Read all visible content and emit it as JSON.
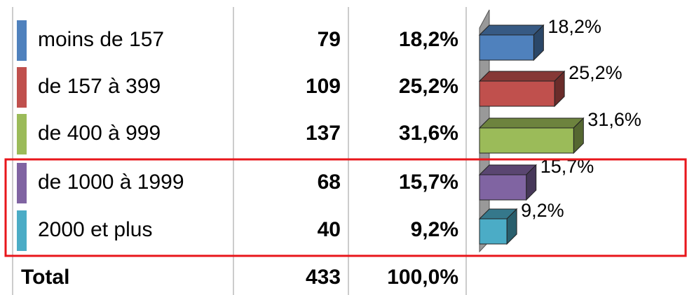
{
  "table": {
    "counts": [
      79,
      109,
      137,
      68,
      40
    ],
    "total": {
      "label": "Total",
      "count": 433,
      "percent": 100,
      "percent_label": "100,0%"
    }
  },
  "chart_data": {
    "type": "bar",
    "orientation": "horizontal",
    "categories": [
      "moins de 157",
      "de 157 à 399",
      "de 400 à 999",
      "de 1000 à 1999",
      "2000 et plus"
    ],
    "values": [
      18.2,
      25.2,
      31.6,
      15.7,
      9.2
    ],
    "value_labels": [
      "18,2%",
      "25,2%",
      "31,6%",
      "15,7%",
      "9,2%"
    ],
    "colors": [
      "#4f81bd",
      "#c0504d",
      "#9bbb59",
      "#8064a2",
      "#4bacc6"
    ]
  }
}
